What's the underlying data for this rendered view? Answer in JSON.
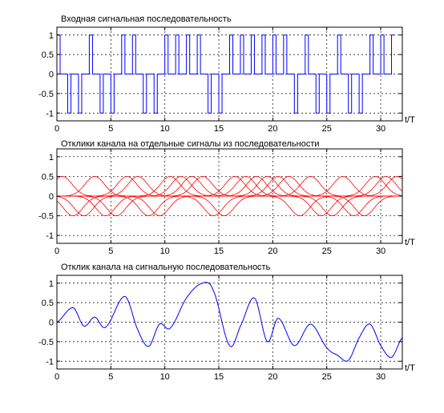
{
  "chart_data": [
    {
      "type": "line",
      "title": "Входная сигнальная последовательность",
      "xlabel": "t/T",
      "ylabel": "",
      "xlim": [
        0,
        32
      ],
      "ylim": [
        -1.2,
        1.2
      ],
      "xticks": [
        0,
        5,
        10,
        15,
        20,
        25,
        30
      ],
      "yticks": [
        1,
        0.5,
        0,
        -0.5,
        -1
      ],
      "grid": true,
      "color": "#0000ff",
      "style": "pulses",
      "pulse_width": 0.3,
      "symbols": [
        1,
        -1,
        -1,
        1,
        -1,
        -1,
        1,
        1,
        -1,
        -1,
        1,
        1,
        1,
        1,
        -1,
        -1,
        1,
        1,
        1,
        1,
        1,
        1,
        -1,
        1,
        -1,
        -1,
        1,
        -1,
        -1,
        1,
        1,
        1
      ]
    },
    {
      "type": "line",
      "title": "Отклики канала на отдельные сигналы из последовательности",
      "xlabel": "t/T",
      "ylabel": "",
      "xlim": [
        0,
        32
      ],
      "ylim": [
        -1.2,
        1.2
      ],
      "xticks": [
        0,
        5,
        10,
        15,
        20,
        25,
        30
      ],
      "yticks": [
        1,
        0.5,
        0,
        -0.5,
        -1
      ],
      "grid": true,
      "color": "#ff0000",
      "style": "individual",
      "amplitude": 0.5,
      "pulse_sigma": 0.9
    },
    {
      "type": "line",
      "title": "Отклик канала на сигнальную последовательность",
      "xlabel": "t/T",
      "ylabel": "",
      "xlim": [
        0,
        32
      ],
      "ylim": [
        -1.2,
        1.2
      ],
      "xticks": [
        0,
        5,
        10,
        15,
        20,
        25,
        30
      ],
      "yticks": [
        1,
        0.5,
        0,
        -0.5,
        -1
      ],
      "grid": true,
      "color": "#0000ff",
      "style": "sum",
      "x": [
        0,
        1.5,
        2.5,
        3.5,
        4.5,
        6.3,
        7.5,
        8.5,
        9.5,
        10.5,
        12,
        13.5,
        14.5,
        16,
        17,
        18.3,
        19.5,
        20.5,
        22,
        23.5,
        25,
        26,
        27,
        28,
        29,
        30,
        31,
        32
      ],
      "y": [
        0,
        0.37,
        -0.1,
        0.13,
        -0.13,
        0.66,
        -0.2,
        -0.62,
        -0.05,
        -0.15,
        0.62,
        1.0,
        0.8,
        -0.6,
        -0.1,
        0.62,
        -0.5,
        0.1,
        -0.6,
        -0.05,
        -0.65,
        -0.85,
        -0.98,
        -0.4,
        -0.05,
        -0.6,
        -0.9,
        -0.4
      ]
    }
  ]
}
